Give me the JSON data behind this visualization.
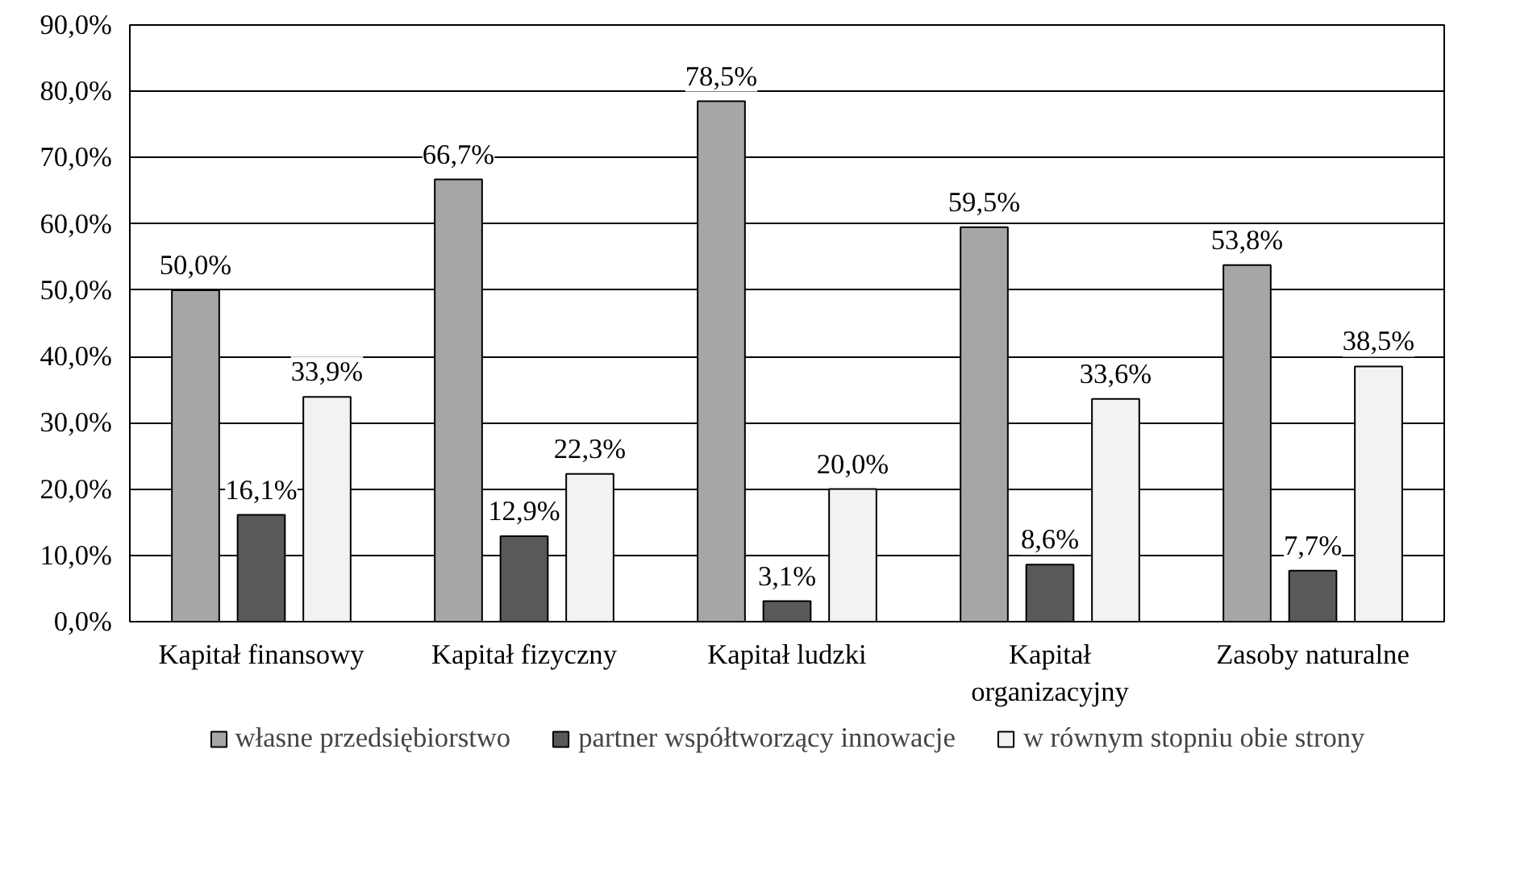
{
  "chart_data": {
    "type": "bar",
    "categories": [
      "Kapitał finansowy",
      "Kapitał fizyczny",
      "Kapitał ludzki",
      "Kapitał organizacyjny",
      "Zasoby naturalne"
    ],
    "series": [
      {
        "name": "własne przedsiębiorstwo",
        "color": "#a6a6a6",
        "values": [
          50.0,
          66.7,
          78.5,
          59.5,
          53.8
        ],
        "value_labels": [
          "50,0%",
          "66,7%",
          "78,5%",
          "59,5%",
          "53,8%"
        ]
      },
      {
        "name": "partner współtworzący innowacje",
        "color": "#595959",
        "values": [
          16.1,
          12.9,
          3.1,
          8.6,
          7.7
        ],
        "value_labels": [
          "16,1%",
          "12,9%",
          "3,1%",
          "8,6%",
          "7,7%"
        ]
      },
      {
        "name": "w równym stopniu obie strony",
        "color": "#f2f2f2",
        "values": [
          33.9,
          22.3,
          20.0,
          33.6,
          38.5
        ],
        "value_labels": [
          "33,9%",
          "22,3%",
          "20,0%",
          "33,6%",
          "38,5%"
        ]
      }
    ],
    "ylim": [
      0,
      90
    ],
    "yticks": [
      {
        "value": 0,
        "label": "0,0%"
      },
      {
        "value": 10,
        "label": "10,0%"
      },
      {
        "value": 20,
        "label": "20,0%"
      },
      {
        "value": 30,
        "label": "30,0%"
      },
      {
        "value": 40,
        "label": "40,0%"
      },
      {
        "value": 50,
        "label": "50,0%"
      },
      {
        "value": 60,
        "label": "60,0%"
      },
      {
        "value": 70,
        "label": "70,0%"
      },
      {
        "value": 80,
        "label": "80,0%"
      },
      {
        "value": 90,
        "label": "90,0%"
      }
    ],
    "grid": "y",
    "legend": "bottom"
  }
}
